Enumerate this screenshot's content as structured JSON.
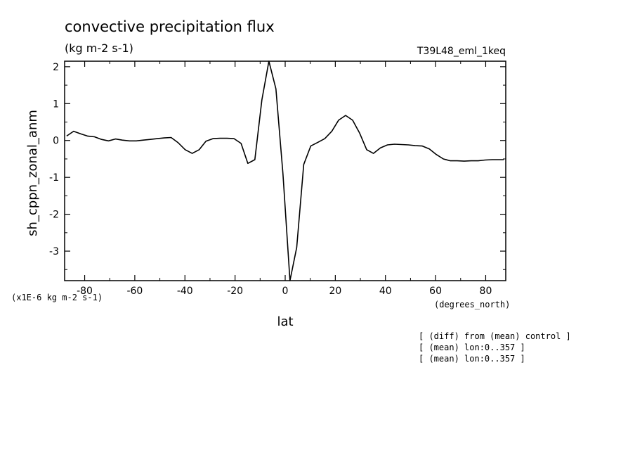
{
  "chart_data": {
    "type": "line",
    "title": "convective precipitation flux",
    "units": "(kg m-2 s-1)",
    "experiment": "T39L48_eml_1keq",
    "xlabel": "lat",
    "x_units": "(degrees_north)",
    "ylabel": "sh_cppn_zonal_anm",
    "y_scale_label": "(x1E-6 kg m-2 s-1)",
    "xlim": [
      -88,
      88
    ],
    "ylim": [
      -3.8,
      2.15
    ],
    "x_ticks": [
      -80,
      -60,
      -40,
      -20,
      0,
      20,
      40,
      60,
      80
    ],
    "x_tick_labels": [
      "-80",
      "-60",
      "-40",
      "-20",
      "0",
      "20",
      "40",
      "60",
      "80"
    ],
    "y_ticks": [
      -3,
      -2,
      -1,
      0,
      1,
      2
    ],
    "y_tick_labels": [
      "-3",
      "-2",
      "-1",
      "0",
      "1",
      "2"
    ],
    "notes": [
      "[ (diff) from (mean) control ]",
      "[ (mean) lon:0..357 ]",
      "[ (mean) lon:0..357 ]"
    ],
    "series": [
      {
        "x": [
          -87.2,
          -84.4,
          -81.6,
          -78.9,
          -76.1,
          -73.3,
          -70.5,
          -67.7,
          -65.0,
          -62.2,
          -59.4,
          -56.6,
          -53.8,
          -51.0,
          -48.3,
          -45.5,
          -42.7,
          -39.9,
          -37.1,
          -34.3,
          -31.6,
          -28.8,
          -26.0,
          -23.2,
          -20.4,
          -17.6,
          -14.9,
          -12.1,
          -9.3,
          -6.5,
          -3.7,
          -0.9,
          1.9,
          4.6,
          7.4,
          10.2,
          13.0,
          15.8,
          18.6,
          21.3,
          24.1,
          26.9,
          29.7,
          32.5,
          35.2,
          38.0,
          40.8,
          43.6,
          46.4,
          49.2,
          51.9,
          54.7,
          57.5,
          60.3,
          63.1,
          65.9,
          68.6,
          71.4,
          74.2,
          77.0,
          79.8,
          82.6,
          85.3,
          87.2
        ],
        "values": [
          0.12,
          0.25,
          0.18,
          0.12,
          0.1,
          0.03,
          -0.01,
          0.04,
          0.01,
          -0.01,
          -0.01,
          0.01,
          0.03,
          0.05,
          0.07,
          0.08,
          -0.06,
          -0.25,
          -0.35,
          -0.25,
          -0.02,
          0.05,
          0.06,
          0.06,
          0.05,
          -0.08,
          -0.62,
          -0.52,
          1.1,
          2.15,
          1.4,
          -0.9,
          -3.8,
          -2.9,
          -0.65,
          -0.15,
          -0.05,
          0.05,
          0.25,
          0.55,
          0.68,
          0.55,
          0.2,
          -0.25,
          -0.35,
          -0.2,
          -0.12,
          -0.1,
          -0.11,
          -0.12,
          -0.14,
          -0.15,
          -0.23,
          -0.38,
          -0.5,
          -0.55,
          -0.55,
          -0.56,
          -0.55,
          -0.55,
          -0.53,
          -0.52,
          -0.52,
          -0.52
        ]
      }
    ]
  }
}
